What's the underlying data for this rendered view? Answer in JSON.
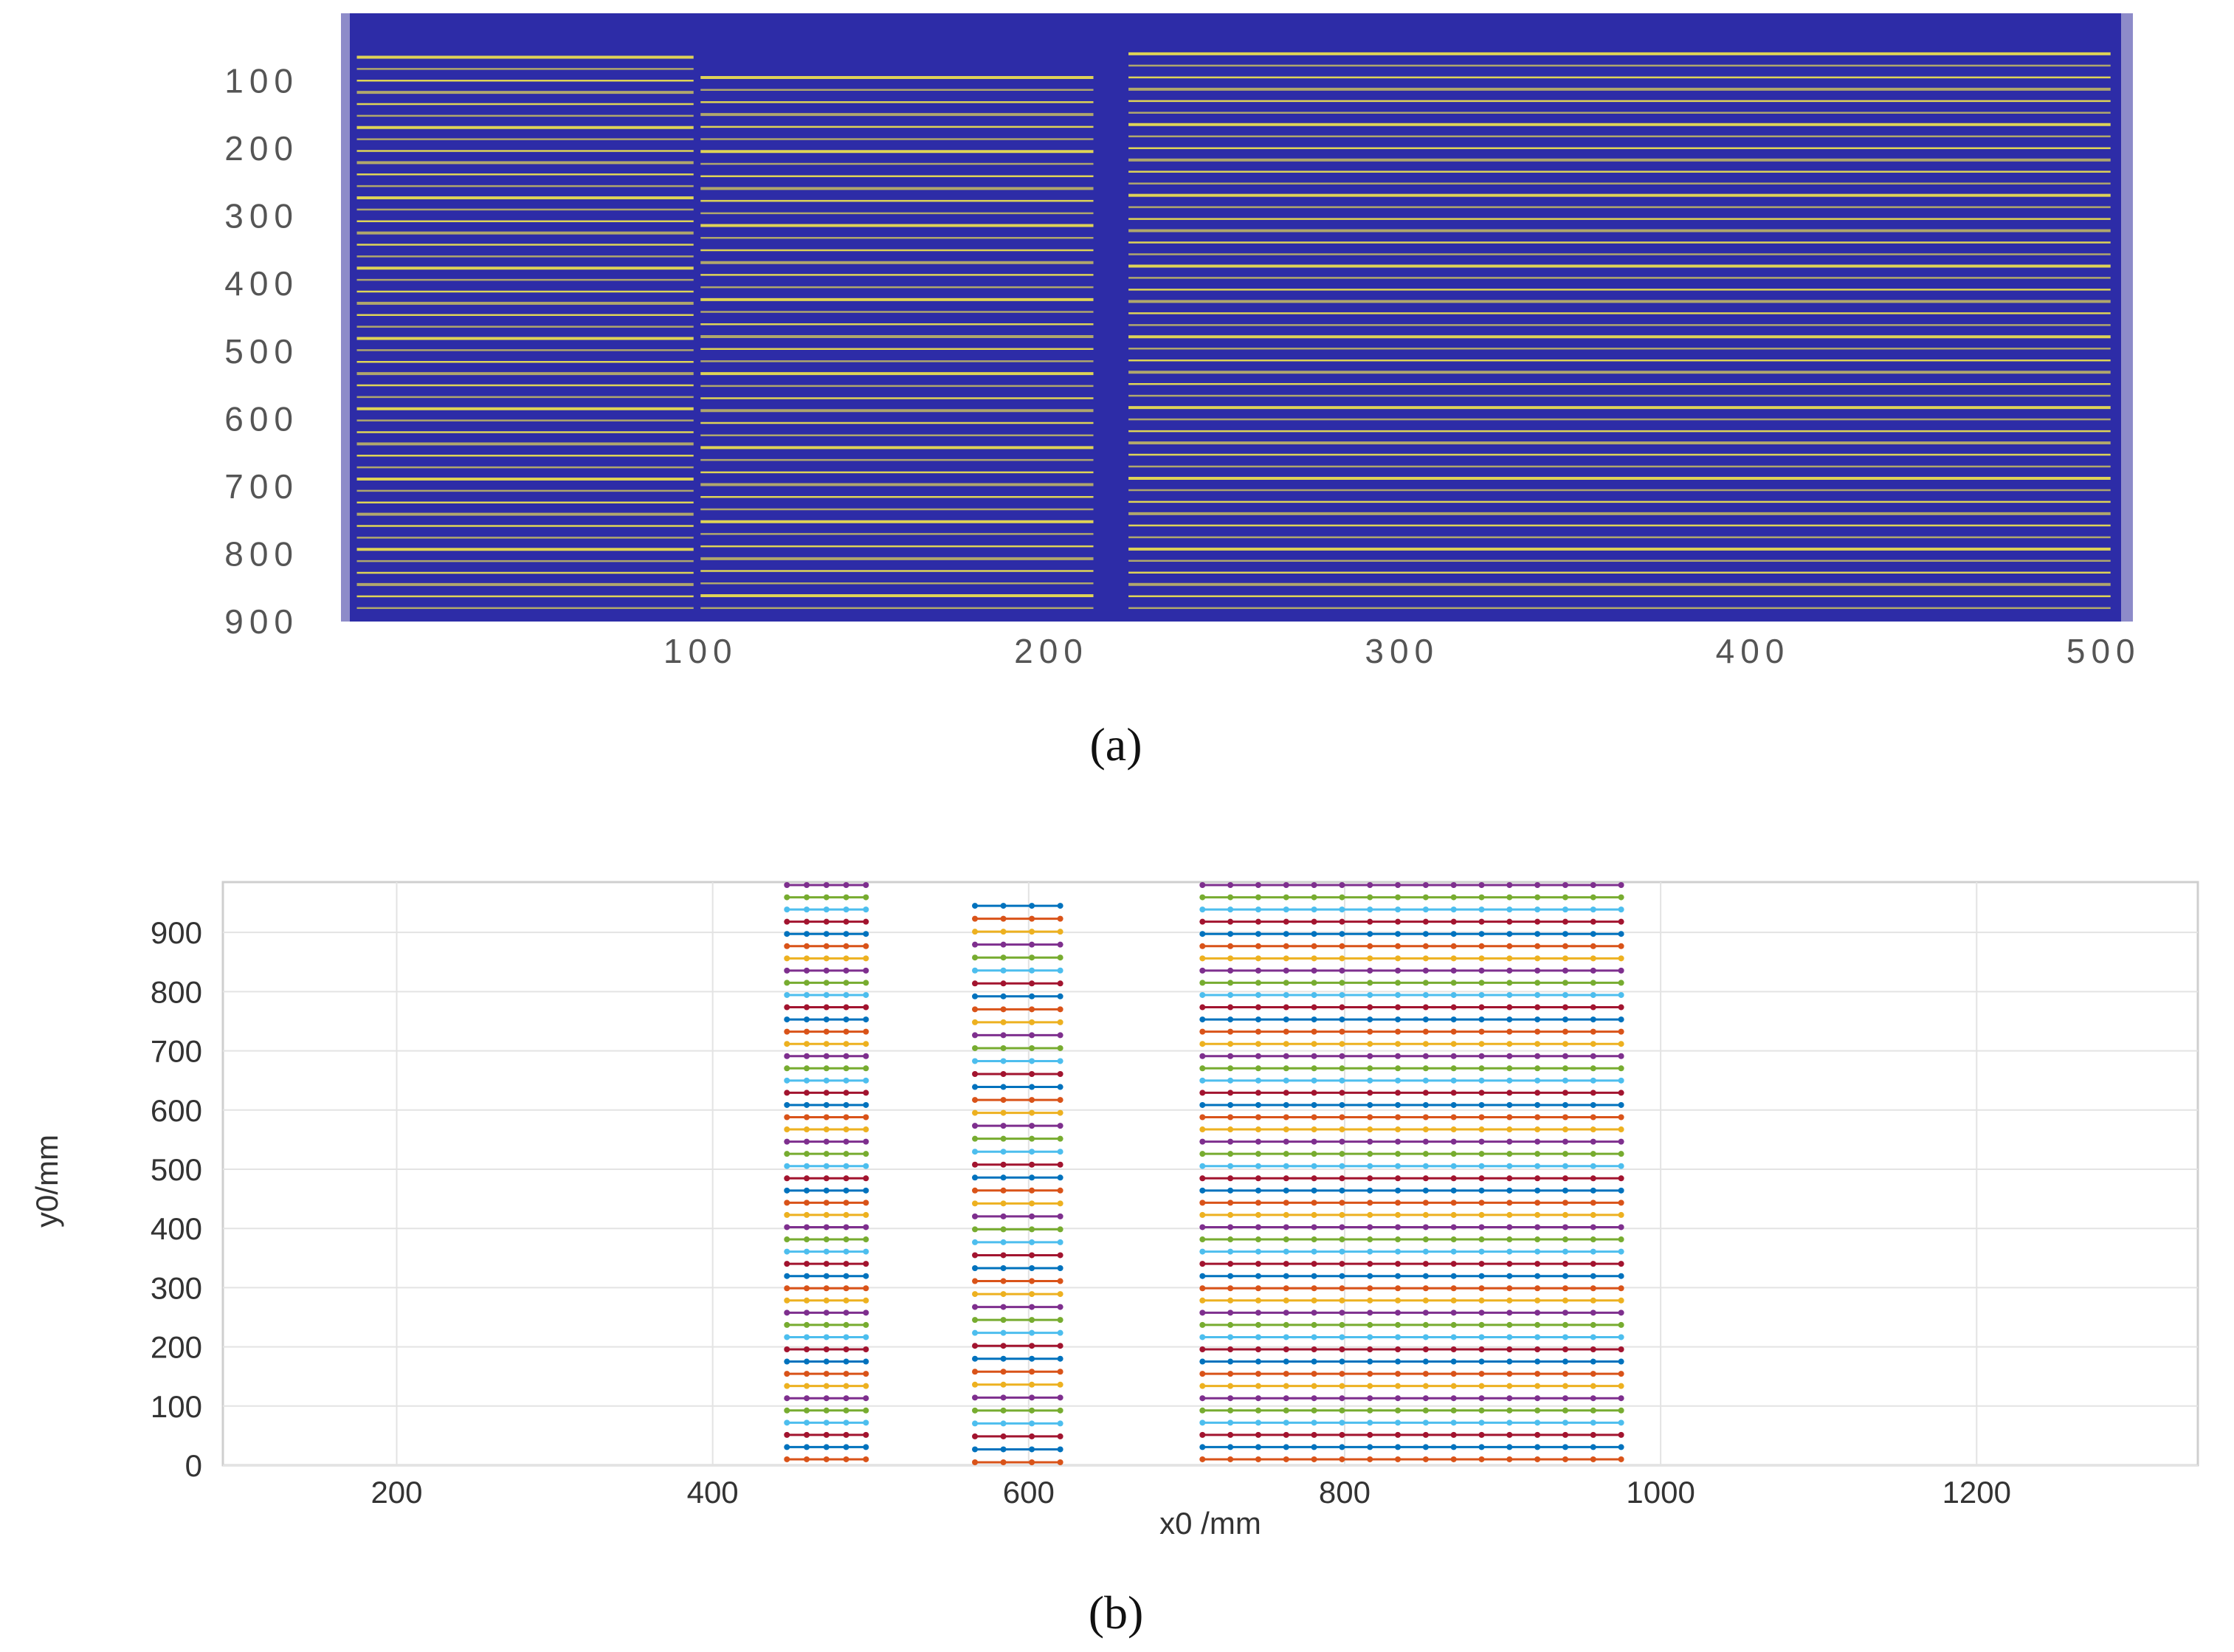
{
  "panel_labels": {
    "a": "(a)",
    "b": "(b)"
  },
  "chart_data": [
    {
      "type": "heatmap",
      "panel": "(a)",
      "xlabel": "",
      "ylabel": "",
      "xticks": [
        100,
        200,
        300,
        400,
        500
      ],
      "yticks": [
        100,
        200,
        300,
        400,
        500,
        600,
        700,
        800,
        900
      ],
      "xlim": [
        0,
        505
      ],
      "ylim": [
        0,
        900
      ],
      "y_reversed": true,
      "colors": {
        "background": "#2d2ca7",
        "line": "#e8dc52",
        "frame": "#8d8bc9"
      },
      "stripe_regions": [
        {
          "x_start": 2,
          "x_end": 98,
          "y_start": 65,
          "y_end": 880,
          "count": 48
        },
        {
          "x_start": 100,
          "x_end": 212,
          "y_start": 95,
          "y_end": 880,
          "count": 44
        },
        {
          "x_start": 222,
          "x_end": 502,
          "y_start": 60,
          "y_end": 880,
          "count": 48
        }
      ]
    },
    {
      "type": "scatter",
      "panel": "(b)",
      "xlabel": "x0 /mm",
      "ylabel": "y0/mm",
      "xlim": [
        90,
        1340
      ],
      "ylim": [
        0,
        985
      ],
      "xticks": [
        200,
        400,
        600,
        800,
        1000,
        1200
      ],
      "yticks": [
        0,
        100,
        200,
        300,
        400,
        500,
        600,
        700,
        800,
        900
      ],
      "grid": true,
      "series_colors": [
        "#d95319",
        "#0072bd",
        "#a2142f",
        "#4dbeee",
        "#77ac30",
        "#7e2f8e",
        "#edb120"
      ],
      "groups": [
        {
          "x_start": 447,
          "x_end": 497,
          "points_per_row": 5,
          "y_start": 10,
          "y_end": 980,
          "rows": 48
        },
        {
          "x_start": 566,
          "x_end": 620,
          "points_per_row": 4,
          "y_start": 5,
          "y_end": 945,
          "rows": 44
        },
        {
          "x_start": 710,
          "x_end": 975,
          "points_per_row": 16,
          "y_start": 10,
          "y_end": 980,
          "rows": 48
        }
      ]
    }
  ]
}
